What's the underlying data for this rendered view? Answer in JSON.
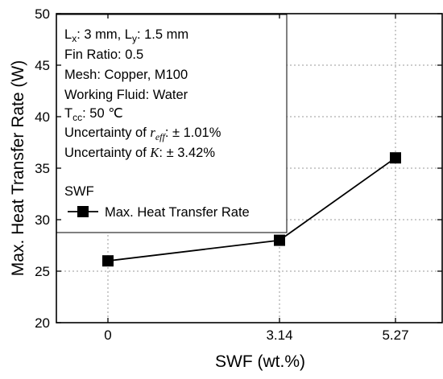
{
  "chart_data": {
    "type": "line",
    "xlabel": "SWF (wt.%)",
    "ylabel": "Max. Heat Transfer Rate (W)",
    "categories": [
      "0",
      "3.14",
      "5.27"
    ],
    "ylim": [
      20,
      50
    ],
    "y_ticks": [
      "20",
      "25",
      "30",
      "35",
      "40",
      "45",
      "50"
    ],
    "grid": true,
    "legend_title": "SWF",
    "series": [
      {
        "name": "Max. Heat Transfer Rate",
        "values": [
          26,
          28,
          36
        ],
        "color": "#000000",
        "marker": "square"
      }
    ],
    "annotations": {
      "line1_a": "L",
      "line1_a_sub": "x",
      "line1_b": ": 3 mm, L",
      "line1_b_sub": "y",
      "line1_c": ": 1.5 mm",
      "line2": "Fin Ratio: 0.5",
      "line3": "Mesh: Copper, M100",
      "line4": "Working Fluid: Water",
      "line5_a": "T",
      "line5_a_sub": "cc",
      "line5_b": ": 50 ℃",
      "line6_a": "Uncertainty of ",
      "line6_var": "r",
      "line6_var_sub": "eff",
      "line6_b": ": ± 1.01%",
      "line7_a": "Uncertainty of ",
      "line7_var": "K",
      "line7_b": ": ± 3.42%"
    }
  }
}
